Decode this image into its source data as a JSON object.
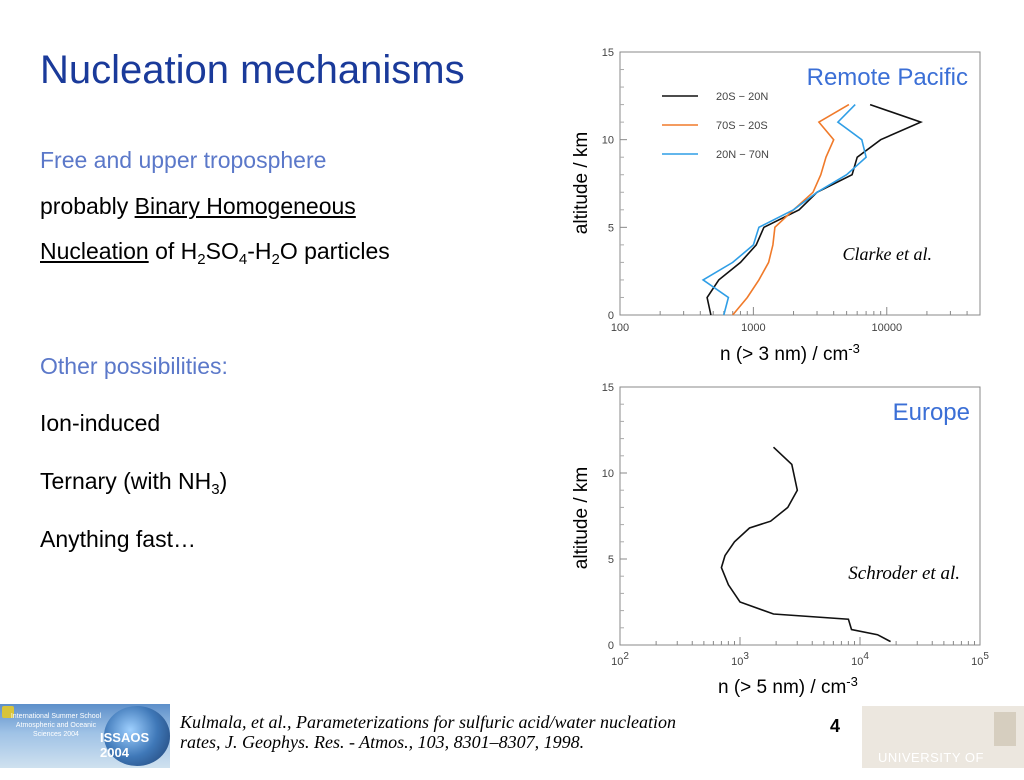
{
  "slide": {
    "title": "Nucleation mechanisms",
    "heading_free": "Free and upper troposphere",
    "line_probably": "probably ",
    "line_bhn": "Binary Homogeneous",
    "line_nucleation": "Nucleation",
    "line_of": " of H",
    "sub_2a": "2",
    "so": "SO",
    "sub_4": "4",
    "dash_h": "-H",
    "sub_2b": "2",
    "o_particles": "O particles",
    "heading_other": "Other possibilities:",
    "item_ion": "Ion-induced",
    "item_ternary": "Ternary (with NH",
    "item_ternary_sub": "3",
    "item_ternary_close": ")",
    "item_fast": "Anything fast…"
  },
  "footer": {
    "citation_line1": "Kulmala, et al., Parameterizations for sulfuric acid/water nucleation",
    "citation_line2": "rates, J. Geophys. Res. - Atmos., 103, 8301–8307, 1998.",
    "page_number": "4",
    "logo_left_text": "International Summer School Atmospheric and Oceanic Sciences 2004",
    "logo_left_brand": "ISSAOS 2004",
    "logo_right_text": "UNIVERSITY OF LEEDS"
  },
  "colors": {
    "title": "#1a3a9a",
    "heading": "#5b78c9",
    "series_black": "#111111",
    "series_orange": "#f07a2a",
    "series_blue": "#2f9ee6",
    "europe": "#111111"
  },
  "chart_data": [
    {
      "type": "line",
      "region_label": "Remote Pacific",
      "annotation": "Clarke et al.",
      "xlabel": "n (> 3 nm) / cm",
      "xlabel_sup": "-3",
      "ylabel": "altitude / km",
      "xscale": "log",
      "xlim": [
        100,
        50000
      ],
      "ylim": [
        0,
        15
      ],
      "xticks": [
        100,
        1000,
        10000
      ],
      "xtick_labels": [
        "100",
        "1000",
        "10000"
      ],
      "yticks": [
        0,
        5,
        10,
        15
      ],
      "ytick_labels": [
        "0",
        "5",
        "10",
        "15"
      ],
      "legend": "top-left",
      "series": [
        {
          "name": "20S  −  20N",
          "x": [
            480,
            450,
            550,
            800,
            1050,
            1200,
            2200,
            3000,
            5500,
            6000,
            9000,
            18000,
            7500
          ],
          "y": [
            0,
            1,
            2,
            3,
            4,
            5,
            6,
            7,
            8,
            9,
            10,
            11,
            12
          ]
        },
        {
          "name": "70S  −  20S",
          "x": [
            700,
            900,
            1100,
            1300,
            1400,
            1450,
            2000,
            2800,
            3200,
            3500,
            4000,
            3100,
            5200
          ],
          "y": [
            0,
            1,
            2,
            3,
            4,
            5,
            6,
            7,
            8,
            9,
            10,
            11,
            12
          ]
        },
        {
          "name": "20N  −  70N",
          "x": [
            600,
            650,
            420,
            700,
            1000,
            1100,
            2000,
            3000,
            5000,
            7000,
            6500,
            4300,
            5800
          ],
          "y": [
            0,
            1,
            2,
            3,
            4,
            5,
            6,
            7,
            8,
            9,
            10,
            11,
            12
          ]
        }
      ]
    },
    {
      "type": "line",
      "region_label": "Europe",
      "annotation": "Schroder et al.",
      "xlabel": "n (> 5 nm) / cm",
      "xlabel_sup": "-3",
      "ylabel": "altitude / km",
      "xscale": "log",
      "xlim": [
        100,
        100000
      ],
      "ylim": [
        0,
        15
      ],
      "xticks": [
        100,
        1000,
        10000,
        100000
      ],
      "xtick_base": [
        "10",
        "10",
        "10",
        "10"
      ],
      "xtick_exp": [
        "2",
        "3",
        "4",
        "5"
      ],
      "yticks": [
        0,
        5,
        10,
        15
      ],
      "ytick_labels": [
        "0",
        "5",
        "10",
        "15"
      ],
      "series": [
        {
          "name": "",
          "x": [
            18000,
            14000,
            8500,
            8000,
            1900,
            1000,
            800,
            700,
            750,
            900,
            1200,
            1800,
            2500,
            3000,
            2700,
            1900
          ],
          "y": [
            0.2,
            0.6,
            0.9,
            1.5,
            1.8,
            2.5,
            3.5,
            4.5,
            5.2,
            6.0,
            6.8,
            7.2,
            8.0,
            9.0,
            10.5,
            11.5
          ]
        }
      ]
    }
  ]
}
